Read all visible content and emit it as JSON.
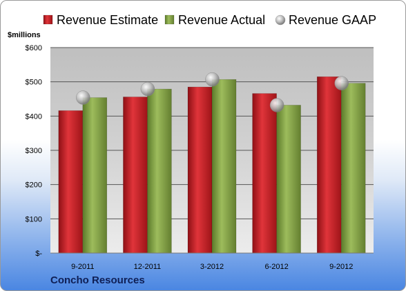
{
  "chart_data": {
    "type": "bar",
    "ylabel": "$millions",
    "categories": [
      "9-2011",
      "12-2011",
      "3-2012",
      "6-2012",
      "9-2012"
    ],
    "series": [
      {
        "name": "Revenue Estimate",
        "values": [
          416,
          456,
          485,
          466,
          515
        ],
        "color": "#cc1f26",
        "kind": "bar"
      },
      {
        "name": "Revenue Actual",
        "values": [
          454,
          479,
          507,
          432,
          496
        ],
        "color": "#86a54a",
        "kind": "bar"
      },
      {
        "name": "Revenue GAAP",
        "values": [
          454,
          479,
          507,
          432,
          496
        ],
        "color": "#b0b0b0",
        "kind": "marker"
      }
    ],
    "ylim": [
      0,
      600
    ],
    "yticks": [
      {
        "value": 0,
        "label": "$-"
      },
      {
        "value": 100,
        "label": "$100"
      },
      {
        "value": 200,
        "label": "$200"
      },
      {
        "value": 300,
        "label": "$300"
      },
      {
        "value": 400,
        "label": "$400"
      },
      {
        "value": 500,
        "label": "$500"
      },
      {
        "value": 600,
        "label": "$600"
      }
    ],
    "grid": true,
    "legend_position": "top",
    "company": "Concho Resources"
  }
}
